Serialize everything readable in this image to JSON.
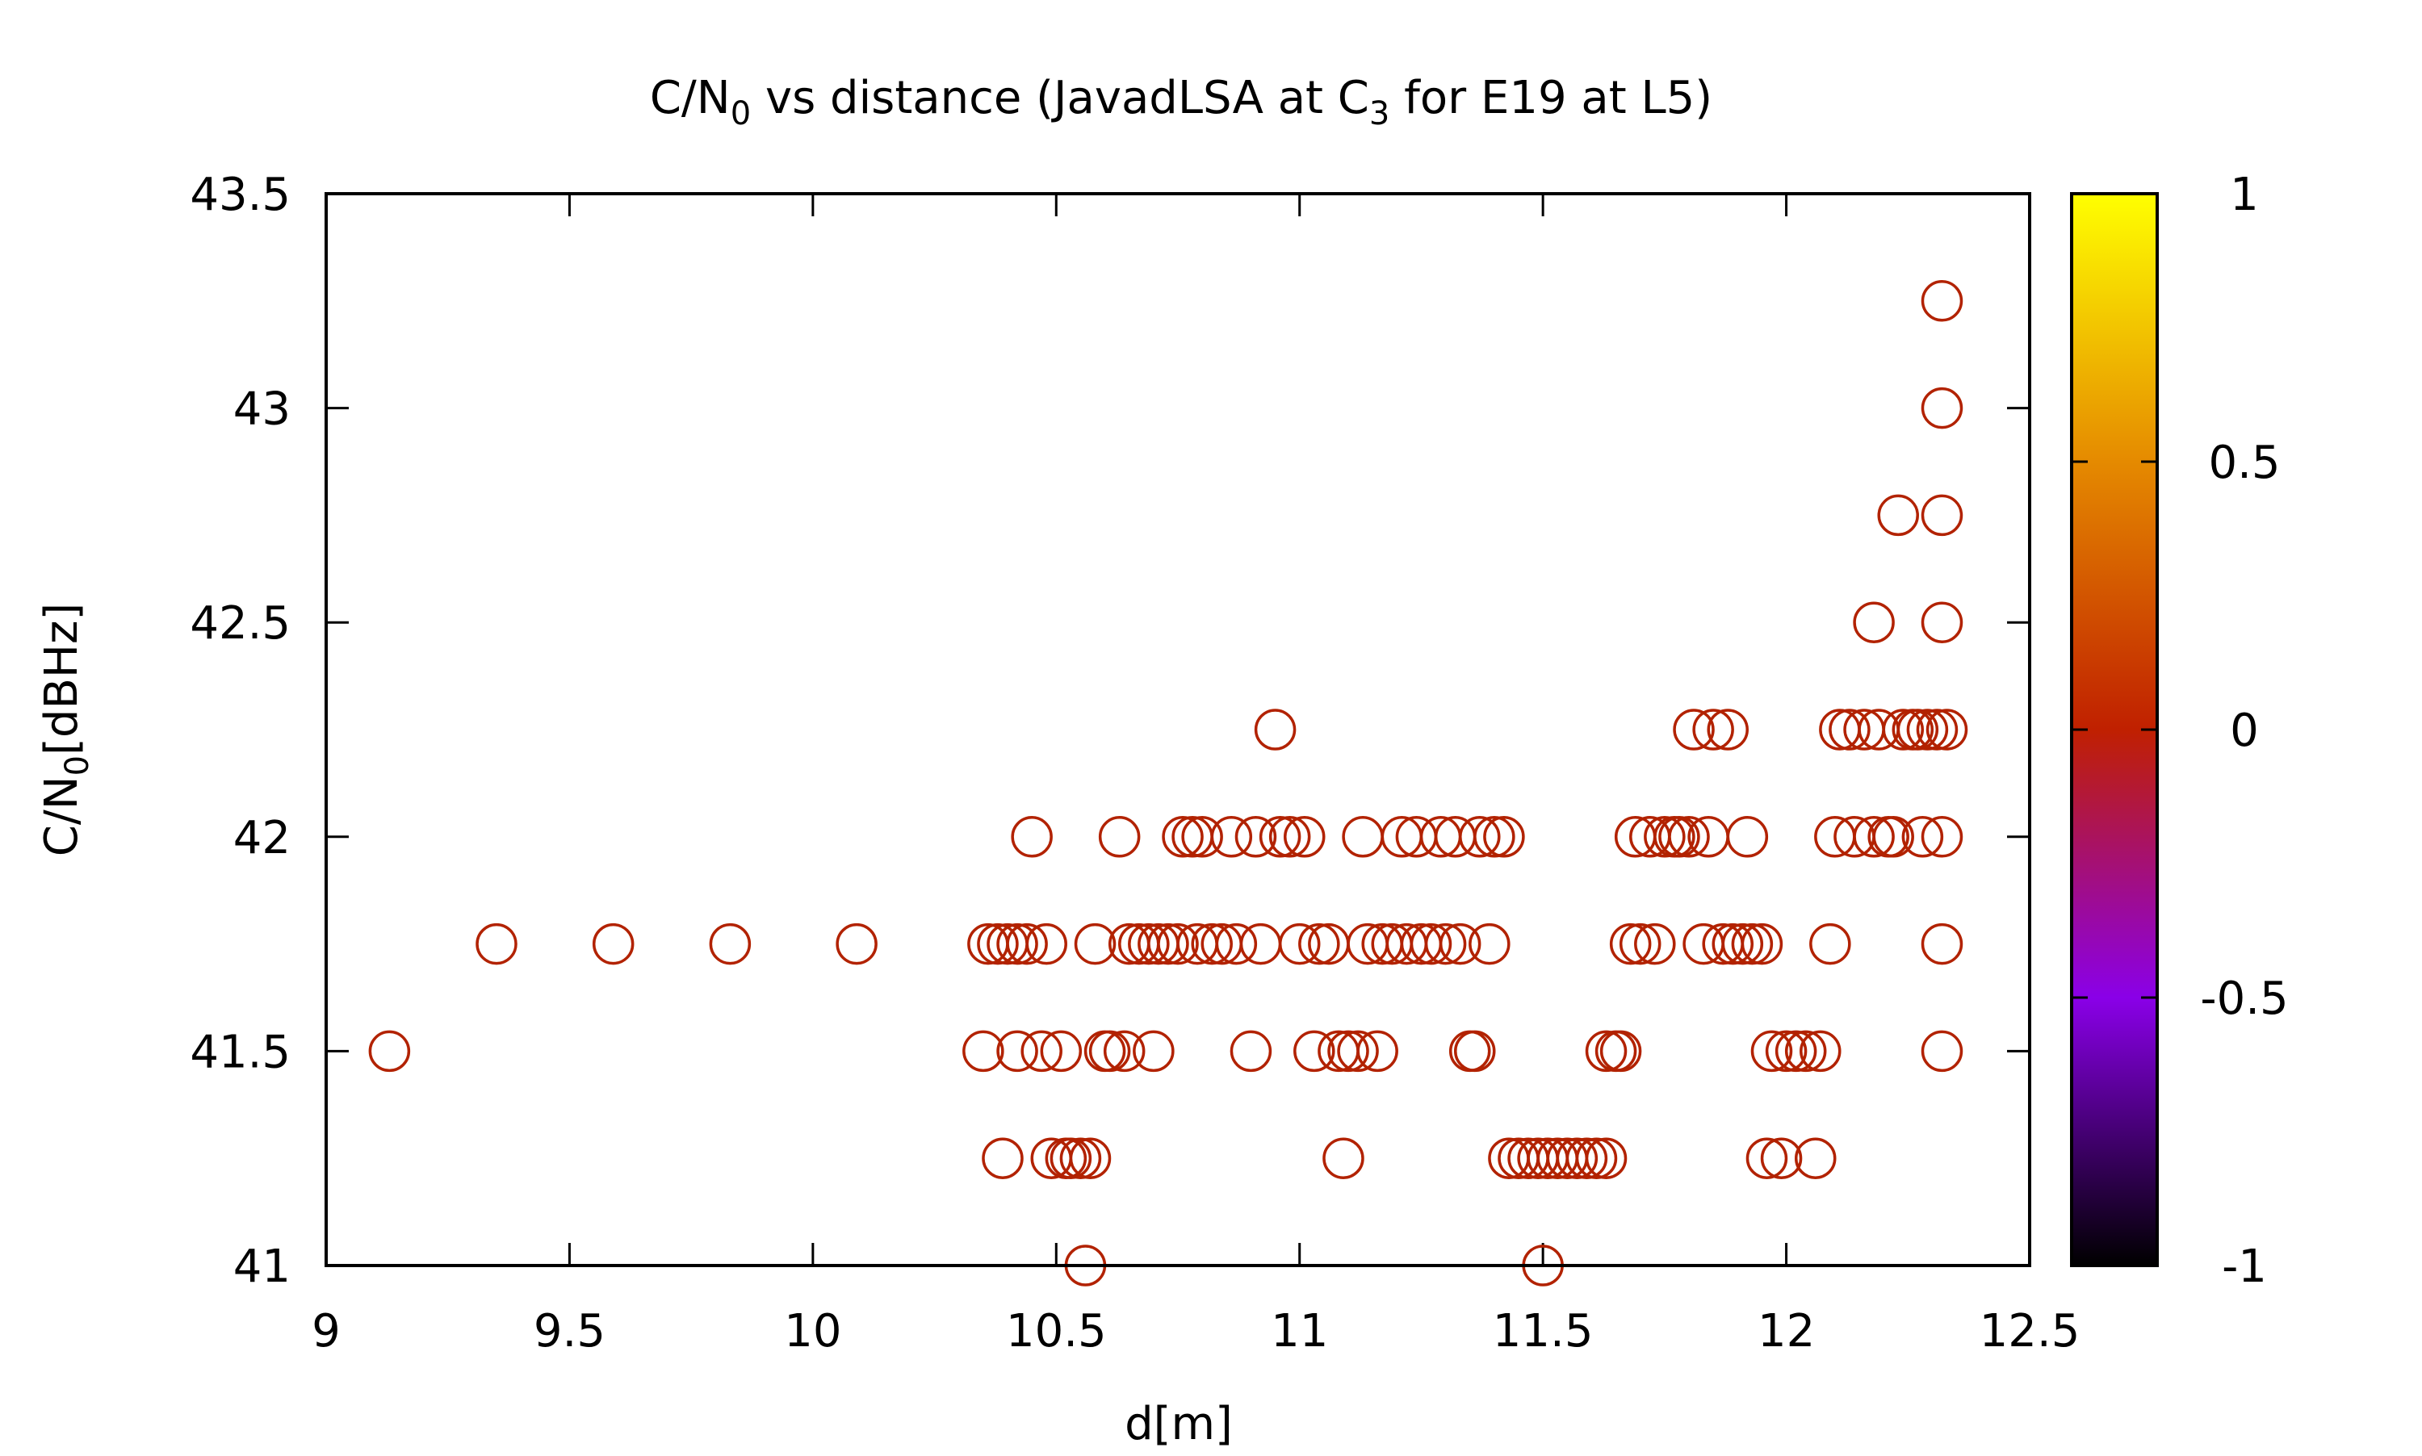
{
  "chart_data": {
    "type": "scatter",
    "title_parts": {
      "a": "C/N",
      "a_sub": "0",
      "b": " vs distance (JavadLSA at C",
      "b_sub": "3",
      "c": " for E19 at L5)"
    },
    "xlabel": "d[m]",
    "ylabel_parts": {
      "a": "C/N",
      "a_sub": "0",
      "b": "[dBHz]"
    },
    "xlim": [
      9,
      12.5
    ],
    "ylim": [
      41,
      43.5
    ],
    "xticks": [
      "9",
      "9.5",
      "10",
      "10.5",
      "11",
      "11.5",
      "12",
      "12.5"
    ],
    "yticks": [
      "41",
      "41.5",
      "42",
      "42.5",
      "43",
      "43.5"
    ],
    "marker_color": "#b22200",
    "colorbar": {
      "range": [
        -1,
        1
      ],
      "ticks": [
        "1",
        "0.5",
        "0",
        "-0.5",
        "-1"
      ],
      "colors": [
        "#ffff00",
        "#e58a00",
        "#c02000",
        "#8a00e8",
        "#000000"
      ]
    },
    "series": [
      {
        "points": [
          [
            9.13,
            41.5
          ],
          [
            9.35,
            41.75
          ],
          [
            9.59,
            41.75
          ],
          [
            9.83,
            41.75
          ],
          [
            10.09,
            41.75
          ],
          [
            10.35,
            41.5
          ],
          [
            10.36,
            41.75
          ],
          [
            10.38,
            41.75
          ],
          [
            10.39,
            41.25
          ],
          [
            10.4,
            41.75
          ],
          [
            10.42,
            41.5
          ],
          [
            10.42,
            41.75
          ],
          [
            10.44,
            41.75
          ],
          [
            10.45,
            42.0
          ],
          [
            10.47,
            41.5
          ],
          [
            10.48,
            41.75
          ],
          [
            10.49,
            41.25
          ],
          [
            10.51,
            41.5
          ],
          [
            10.52,
            41.25
          ],
          [
            10.53,
            41.25
          ],
          [
            10.55,
            41.25
          ],
          [
            10.56,
            41.0
          ],
          [
            10.57,
            41.25
          ],
          [
            10.58,
            41.75
          ],
          [
            10.6,
            41.5
          ],
          [
            10.61,
            41.5
          ],
          [
            10.63,
            42.0
          ],
          [
            10.64,
            41.5
          ],
          [
            10.65,
            41.75
          ],
          [
            10.67,
            41.75
          ],
          [
            10.69,
            41.75
          ],
          [
            10.7,
            41.5
          ],
          [
            10.71,
            41.75
          ],
          [
            10.73,
            41.75
          ],
          [
            10.75,
            41.75
          ],
          [
            10.76,
            42.0
          ],
          [
            10.78,
            42.0
          ],
          [
            10.79,
            41.75
          ],
          [
            10.8,
            42.0
          ],
          [
            10.82,
            41.75
          ],
          [
            10.84,
            41.75
          ],
          [
            10.86,
            42.0
          ],
          [
            10.87,
            41.75
          ],
          [
            10.9,
            41.5
          ],
          [
            10.91,
            42.0
          ],
          [
            10.92,
            41.75
          ],
          [
            10.95,
            42.25
          ],
          [
            10.96,
            42.0
          ],
          [
            10.98,
            42.0
          ],
          [
            11.0,
            41.75
          ],
          [
            11.01,
            42.0
          ],
          [
            11.03,
            41.5
          ],
          [
            11.04,
            41.75
          ],
          [
            11.06,
            41.75
          ],
          [
            11.08,
            41.5
          ],
          [
            11.09,
            41.25
          ],
          [
            11.1,
            41.5
          ],
          [
            11.12,
            41.5
          ],
          [
            11.13,
            42.0
          ],
          [
            11.14,
            41.75
          ],
          [
            11.16,
            41.5
          ],
          [
            11.17,
            41.75
          ],
          [
            11.19,
            41.75
          ],
          [
            11.21,
            42.0
          ],
          [
            11.22,
            41.75
          ],
          [
            11.24,
            42.0
          ],
          [
            11.25,
            41.75
          ],
          [
            11.27,
            41.75
          ],
          [
            11.29,
            42.0
          ],
          [
            11.3,
            41.75
          ],
          [
            11.32,
            42.0
          ],
          [
            11.33,
            41.75
          ],
          [
            11.35,
            41.5
          ],
          [
            11.36,
            41.5
          ],
          [
            11.37,
            42.0
          ],
          [
            11.39,
            41.75
          ],
          [
            11.4,
            42.0
          ],
          [
            11.42,
            42.0
          ],
          [
            11.43,
            41.25
          ],
          [
            11.45,
            41.25
          ],
          [
            11.47,
            41.25
          ],
          [
            11.49,
            41.25
          ],
          [
            11.5,
            41.0
          ],
          [
            11.51,
            41.25
          ],
          [
            11.53,
            41.25
          ],
          [
            11.55,
            41.25
          ],
          [
            11.57,
            41.25
          ],
          [
            11.59,
            41.25
          ],
          [
            11.61,
            41.25
          ],
          [
            11.63,
            41.25
          ],
          [
            11.63,
            41.5
          ],
          [
            11.65,
            41.5
          ],
          [
            11.66,
            41.5
          ],
          [
            11.68,
            41.75
          ],
          [
            11.69,
            42.0
          ],
          [
            11.7,
            41.75
          ],
          [
            11.72,
            42.0
          ],
          [
            11.73,
            41.75
          ],
          [
            11.75,
            42.0
          ],
          [
            11.77,
            42.0
          ],
          [
            11.78,
            42.0
          ],
          [
            11.8,
            42.0
          ],
          [
            11.81,
            42.25
          ],
          [
            11.83,
            41.75
          ],
          [
            11.84,
            42.0
          ],
          [
            11.85,
            42.25
          ],
          [
            11.87,
            41.75
          ],
          [
            11.88,
            42.25
          ],
          [
            11.89,
            41.75
          ],
          [
            11.91,
            41.75
          ],
          [
            11.92,
            42.0
          ],
          [
            11.93,
            41.75
          ],
          [
            11.95,
            41.75
          ],
          [
            11.96,
            41.25
          ],
          [
            11.97,
            41.5
          ],
          [
            11.99,
            41.25
          ],
          [
            12.0,
            41.5
          ],
          [
            12.02,
            41.5
          ],
          [
            12.04,
            41.5
          ],
          [
            12.06,
            41.25
          ],
          [
            12.07,
            41.5
          ],
          [
            12.09,
            41.75
          ],
          [
            12.1,
            42.0
          ],
          [
            12.11,
            42.25
          ],
          [
            12.13,
            42.25
          ],
          [
            12.14,
            42.0
          ],
          [
            12.16,
            42.25
          ],
          [
            12.18,
            42.5
          ],
          [
            12.18,
            42.0
          ],
          [
            12.19,
            42.25
          ],
          [
            12.21,
            42.0
          ],
          [
            12.22,
            42.0
          ],
          [
            12.23,
            42.75
          ],
          [
            12.24,
            42.25
          ],
          [
            12.26,
            42.25
          ],
          [
            12.27,
            42.25
          ],
          [
            12.28,
            42.0
          ],
          [
            12.29,
            42.25
          ],
          [
            12.31,
            42.25
          ],
          [
            12.32,
            43.25
          ],
          [
            12.32,
            43.0
          ],
          [
            12.32,
            42.75
          ],
          [
            12.32,
            42.5
          ],
          [
            12.33,
            42.25
          ],
          [
            12.32,
            42.0
          ],
          [
            12.32,
            41.75
          ],
          [
            12.32,
            41.5
          ]
        ]
      }
    ]
  }
}
